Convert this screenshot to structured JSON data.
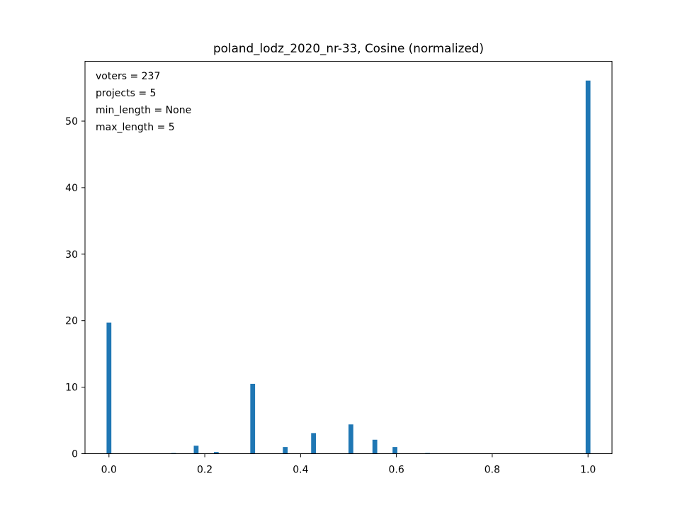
{
  "chart_data": {
    "type": "bar",
    "title": "poland_lodz_2020_nr-33, Cosine (normalized)",
    "xlabel": "",
    "ylabel": "",
    "xlim": [
      -0.05,
      1.05
    ],
    "ylim": [
      0,
      59
    ],
    "x_ticks": [
      0.0,
      0.2,
      0.4,
      0.6,
      0.8,
      1.0
    ],
    "x_tick_labels": [
      "0.0",
      "0.2",
      "0.4",
      "0.6",
      "0.8",
      "1.0"
    ],
    "y_ticks": [
      0,
      10,
      20,
      30,
      40,
      50
    ],
    "y_tick_labels": [
      "0",
      "10",
      "20",
      "30",
      "40",
      "50"
    ],
    "bin_width": 0.01,
    "bars": [
      {
        "x": 0.0,
        "value": 19.7
      },
      {
        "x": 0.135,
        "value": 0.1
      },
      {
        "x": 0.182,
        "value": 1.2
      },
      {
        "x": 0.224,
        "value": 0.25
      },
      {
        "x": 0.3,
        "value": 10.5
      },
      {
        "x": 0.368,
        "value": 1.0
      },
      {
        "x": 0.427,
        "value": 3.1
      },
      {
        "x": 0.505,
        "value": 4.4
      },
      {
        "x": 0.555,
        "value": 2.1
      },
      {
        "x": 0.597,
        "value": 1.0
      },
      {
        "x": 0.665,
        "value": 0.1
      },
      {
        "x": 1.0,
        "value": 56.1
      }
    ],
    "annotations": [
      "voters = 237",
      "projects = 5",
      "min_length = None",
      "max_length = 5"
    ],
    "grid": false,
    "bar_color": "#1f77b4"
  }
}
